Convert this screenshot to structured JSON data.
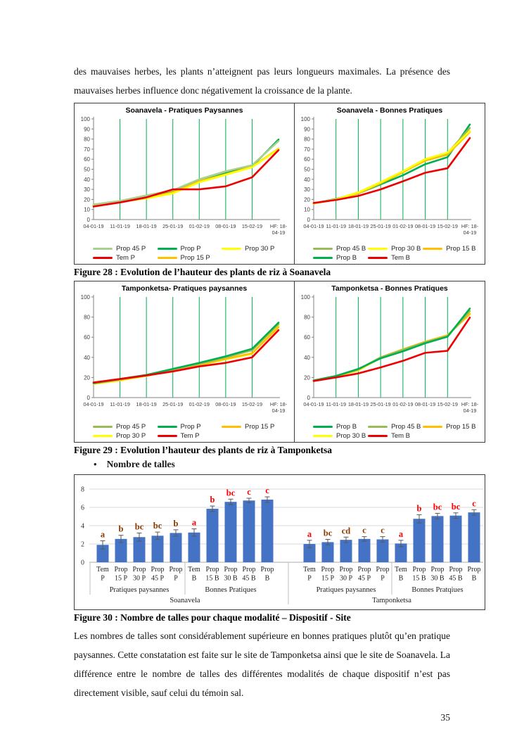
{
  "page": {
    "number": "35"
  },
  "intro_text": "des mauvaises herbes, les plants n’atteignent pas leurs longueurs maximales. La présence des mauvaises herbes influence donc négativement la croissance de la plante.",
  "captions": {
    "fig28": "Figure 28 : Evolution de l’hauteur des plants de riz à Soanavela",
    "fig29": "Figure 29 : Evolution l’hauteur des plants de riz à Tamponketsa",
    "fig30": "Figure 30 : Nombre de talles pour chaque modalité – Dispositif - Site"
  },
  "bullet": {
    "marker": "•",
    "label": "Nombre de talles"
  },
  "body_text": "Les nombres de talles sont considérablement supérieure en bonnes pratiques plutôt qu’en pratique paysannes. Cette constatation est faite sur le site de Tamponketsa ainsi que le site de Soanavela. La différence entre le nombre de talles des différentes modalités de chaque dispositif n’est pas directement visible, sauf celui du témoin sal.",
  "chart_data": [
    {
      "id": "soanavela-pratiques-paysannes",
      "type": "line",
      "title": "Soanavela - Pratiques Paysannes",
      "x_labels": [
        "04-01-19",
        "11-01-19",
        "18-01-19",
        "25-01-19",
        "01-02-19",
        "08-01-19",
        "15-02-19",
        "HF: 18-\n04-19"
      ],
      "ylim": [
        0,
        100
      ],
      "ytick_step": 10,
      "grid": "vertical-green",
      "series": [
        {
          "name": "Prop P",
          "color": "#00B050",
          "values": [
            14.5,
            18,
            22.5,
            28.5,
            38,
            46,
            53,
            79.5
          ]
        },
        {
          "name": "Prop 15 P",
          "color": "#FFC000",
          "values": [
            14,
            17.5,
            21.5,
            27,
            38,
            45,
            52.5,
            70.5
          ]
        },
        {
          "name": "Prop 30 P",
          "color": "#FFFF00",
          "values": [
            14,
            17.5,
            21,
            26,
            37,
            44.5,
            52,
            70
          ]
        },
        {
          "name": "Prop 45 P",
          "color": "#A9D08E",
          "values": [
            15,
            18.5,
            24,
            29,
            40,
            48,
            54,
            78
          ]
        },
        {
          "name": "Tem P",
          "color": "#EE0000",
          "values": [
            13,
            17,
            22,
            30,
            30,
            33,
            42,
            69
          ]
        }
      ],
      "legend_rows": [
        [
          "Prop 45 P",
          "Prop P",
          "Prop 30 P"
        ],
        [
          "Tem P",
          "Prop 15 P"
        ]
      ]
    },
    {
      "id": "soanavela-bonnes-pratiques",
      "type": "line",
      "title": "Soanavela - Bonnes Pratiques",
      "x_labels": [
        "04-01-19",
        "11-01-19",
        "18-01-19",
        "25-01-19",
        "01-02-19",
        "08-01-19",
        "15-02-19",
        "HF: 18-\n04-19"
      ],
      "ylim": [
        0,
        100
      ],
      "ytick_step": 10,
      "grid": "vertical-green",
      "series": [
        {
          "name": "Prop B",
          "color": "#00B050",
          "values": [
            16,
            20.5,
            26,
            35,
            44,
            55,
            62,
            94.5
          ]
        },
        {
          "name": "Prop 15 B",
          "color": "#FFC000",
          "values": [
            16,
            20,
            26,
            36,
            47,
            58.5,
            64.5,
            87
          ]
        },
        {
          "name": "Prop 45 B",
          "color": "#9BBB59",
          "values": [
            16,
            20,
            27,
            37,
            48,
            60,
            66,
            91
          ]
        },
        {
          "name": "Prop 30 B",
          "color": "#FFFF00",
          "values": [
            16,
            20,
            27,
            37,
            48,
            60,
            66.5,
            88
          ]
        },
        {
          "name": "Tem B",
          "color": "#EE0000",
          "values": [
            16.5,
            19.5,
            23.5,
            30,
            38,
            46.5,
            51,
            81
          ]
        }
      ],
      "legend_rows": [
        [
          "Prop 45 B",
          "Prop 30 B",
          "Prop 15 B"
        ],
        [
          "Prop B",
          "Tem B"
        ]
      ]
    },
    {
      "id": "tamponketsa-pratiques-paysannes",
      "type": "line",
      "title": "Tamponketsa- Pratiques paysannes",
      "x_labels": [
        "04-01-19",
        "11-01-19",
        "18-01-19",
        "25-01-19",
        "01-02-19",
        "08-01-19",
        "15-02-19",
        "HF: 18-\n04-19"
      ],
      "ylim": [
        0,
        100
      ],
      "ytick_step": 20,
      "grid": "vertical-green",
      "series": [
        {
          "name": "Prop 30 P",
          "color": "#FFFF00",
          "values": [
            13.5,
            17,
            21.5,
            27,
            32,
            38,
            43.5,
            71.5
          ]
        },
        {
          "name": "Prop 15 P",
          "color": "#FFC000",
          "values": [
            14,
            17.5,
            22,
            27,
            32.5,
            38.5,
            44,
            70
          ]
        },
        {
          "name": "Prop 45 P",
          "color": "#9BBB59",
          "values": [
            14,
            18,
            22,
            28,
            33.5,
            40,
            47,
            73
          ]
        },
        {
          "name": "Prop P",
          "color": "#00B050",
          "values": [
            14.5,
            18.5,
            22.5,
            28.5,
            34.5,
            41,
            48.5,
            74.5
          ]
        },
        {
          "name": "Tem P",
          "color": "#EE0000",
          "values": [
            15,
            18.5,
            22,
            26,
            31,
            34.5,
            40,
            67
          ]
        }
      ],
      "legend_rows": [
        [
          "Prop 45 P",
          "Prop P",
          "Prop 15 P"
        ],
        [
          "Prop 30 P",
          "Tem P"
        ]
      ]
    },
    {
      "id": "tamponketsa-bonnes-pratiques",
      "type": "line",
      "title": "Tamponketsa - Bonnes Pratiques",
      "x_labels": [
        "04-01-19",
        "11-01-19",
        "18-01-19",
        "25-01-19",
        "01-02-19",
        "08-01-19",
        "15-02-19",
        "HF: 18-\n04-19"
      ],
      "ylim": [
        0,
        100
      ],
      "ytick_step": 20,
      "grid": "vertical-green",
      "series": [
        {
          "name": "Prop 30 B",
          "color": "#FFFF00",
          "values": [
            17,
            21,
            27,
            39.5,
            47,
            55,
            62,
            84
          ]
        },
        {
          "name": "Prop 15 B",
          "color": "#FFC000",
          "values": [
            17,
            21,
            27.5,
            40,
            48,
            55.5,
            62,
            83
          ]
        },
        {
          "name": "Prop 45 B",
          "color": "#9BBB59",
          "values": [
            17,
            21.5,
            28,
            40,
            47.5,
            55,
            61,
            86
          ]
        },
        {
          "name": "Prop B",
          "color": "#00B050",
          "values": [
            17,
            21.5,
            28.5,
            39,
            46,
            54,
            60.5,
            88.5
          ]
        },
        {
          "name": "Tem B",
          "color": "#EE0000",
          "values": [
            16.5,
            20,
            24,
            30,
            36.5,
            44.5,
            46.5,
            79.5
          ]
        }
      ],
      "legend_rows": [
        [
          "Prop B",
          "Prop 45 B",
          "Prop 15 B"
        ],
        [
          "Prop 30 B",
          "Tem B"
        ]
      ]
    },
    {
      "id": "nombre-de-talles",
      "type": "bar",
      "ylim": [
        0,
        8
      ],
      "yticks": [
        0,
        2,
        4,
        6,
        8
      ],
      "bar_color": "#4472C4",
      "error_color": "#595959",
      "letter_red": "#FF0000",
      "letter_brown": "#8A3B00",
      "sites": [
        {
          "name": "Soanavela",
          "groups": [
            {
              "name": "Pratiques paysannes",
              "bars": [
                {
                  "label_lines": [
                    "Tem",
                    "P"
                  ],
                  "value": 1.9,
                  "err": 0.45,
                  "letter": "a",
                  "letter_color": "#8A3B00"
                },
                {
                  "label_lines": [
                    "Prop",
                    "15  P"
                  ],
                  "value": 2.55,
                  "err": 0.4,
                  "letter": "b",
                  "letter_color": "#8A3B00"
                },
                {
                  "label_lines": [
                    "Prop",
                    "30  P"
                  ],
                  "value": 2.75,
                  "err": 0.45,
                  "letter": "bc",
                  "letter_color": "#8A3B00"
                },
                {
                  "label_lines": [
                    "Prop",
                    "45  P"
                  ],
                  "value": 2.9,
                  "err": 0.4,
                  "letter": "bc",
                  "letter_color": "#8A3B00"
                },
                {
                  "label_lines": [
                    "Prop",
                    "P"
                  ],
                  "value": 3.2,
                  "err": 0.35,
                  "letter": "b",
                  "letter_color": "#8A3B00"
                }
              ]
            },
            {
              "name": "Bonnes Pratiques",
              "bars": [
                {
                  "label_lines": [
                    "Tem",
                    "B"
                  ],
                  "value": 3.25,
                  "err": 0.4,
                  "letter": "a",
                  "letter_color": "#FF0000"
                },
                {
                  "label_lines": [
                    "Prop",
                    "15  B"
                  ],
                  "value": 5.85,
                  "err": 0.3,
                  "letter": "b",
                  "letter_color": "#FF0000"
                },
                {
                  "label_lines": [
                    "Prop",
                    "30  B"
                  ],
                  "value": 6.6,
                  "err": 0.3,
                  "letter": "bc",
                  "letter_color": "#FF0000"
                },
                {
                  "label_lines": [
                    "Prop",
                    "45  B"
                  ],
                  "value": 6.75,
                  "err": 0.25,
                  "letter": "c",
                  "letter_color": "#FF0000"
                },
                {
                  "label_lines": [
                    "Prop",
                    "B"
                  ],
                  "value": 6.85,
                  "err": 0.3,
                  "letter": "c",
                  "letter_color": "#FF0000"
                }
              ]
            }
          ]
        },
        {
          "name": "Tamponketsa",
          "groups": [
            {
              "name": "Pratiques paysannes",
              "bars": [
                {
                  "label_lines": [
                    "Tem",
                    "P"
                  ],
                  "value": 2.0,
                  "err": 0.4,
                  "letter": "a",
                  "letter_color": "#FF0000"
                },
                {
                  "label_lines": [
                    "Prop",
                    "15  P"
                  ],
                  "value": 2.2,
                  "err": 0.3,
                  "letter": "bc",
                  "letter_color": "#8A3B00"
                },
                {
                  "label_lines": [
                    "Prop",
                    "30  P"
                  ],
                  "value": 2.45,
                  "err": 0.3,
                  "letter": "cd",
                  "letter_color": "#8A3B00"
                },
                {
                  "label_lines": [
                    "Prop",
                    "45  P"
                  ],
                  "value": 2.55,
                  "err": 0.25,
                  "letter": "c",
                  "letter_color": "#8A3B00"
                },
                {
                  "label_lines": [
                    "Prop",
                    "P"
                  ],
                  "value": 2.5,
                  "err": 0.3,
                  "letter": "c",
                  "letter_color": "#8A3B00"
                }
              ]
            },
            {
              "name": "Bonnes Pratqiues",
              "bars": [
                {
                  "label_lines": [
                    "Tem",
                    "B"
                  ],
                  "value": 2.05,
                  "err": 0.35,
                  "letter": "a",
                  "letter_color": "#FF0000"
                },
                {
                  "label_lines": [
                    "Prop",
                    "15  B"
                  ],
                  "value": 4.75,
                  "err": 0.45,
                  "letter": "b",
                  "letter_color": "#FF0000"
                },
                {
                  "label_lines": [
                    "Prop",
                    "30  B"
                  ],
                  "value": 5.05,
                  "err": 0.3,
                  "letter": "bc",
                  "letter_color": "#FF0000"
                },
                {
                  "label_lines": [
                    "Prop",
                    "45  B"
                  ],
                  "value": 5.1,
                  "err": 0.3,
                  "letter": "bc",
                  "letter_color": "#FF0000"
                },
                {
                  "label_lines": [
                    "Prop",
                    "B"
                  ],
                  "value": 5.45,
                  "err": 0.3,
                  "letter": "c",
                  "letter_color": "#FF0000"
                }
              ]
            }
          ]
        }
      ]
    }
  ]
}
